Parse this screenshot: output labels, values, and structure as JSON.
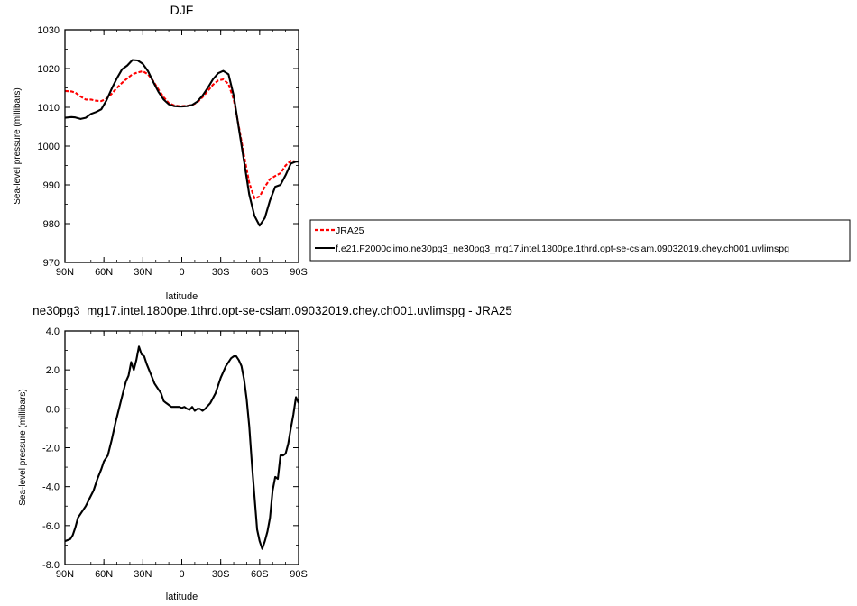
{
  "chart_data": [
    {
      "type": "line",
      "title": "DJF",
      "xlabel": "latitude",
      "ylabel": "Sea-level pressure (millibars)",
      "xlim": [
        -90,
        90
      ],
      "ylim": [
        970,
        1030
      ],
      "xticks": [
        "90N",
        "60N",
        "30N",
        "0",
        "30S",
        "60S",
        "90S"
      ],
      "yticks": [
        "970",
        "980",
        "990",
        "1000",
        "1010",
        "1020",
        "1030"
      ],
      "legend": "right",
      "series": [
        {
          "name": "JRA25",
          "color": "#ff0000",
          "dash": true,
          "x": [
            -90,
            -85,
            -82,
            -78,
            -74,
            -70,
            -66,
            -62,
            -58,
            -54,
            -50,
            -46,
            -42,
            -38,
            -34,
            -30,
            -26,
            -22,
            -18,
            -14,
            -10,
            -6,
            -2,
            0,
            4,
            8,
            12,
            16,
            20,
            24,
            28,
            32,
            36,
            40,
            44,
            48,
            52,
            56,
            60,
            64,
            68,
            72,
            76,
            80,
            84,
            88,
            90
          ],
          "y": [
            1014.2,
            1014.1,
            1013.8,
            1012.8,
            1012.0,
            1012.0,
            1011.7,
            1011.6,
            1012.2,
            1013.5,
            1015.0,
            1016.3,
            1017.5,
            1018.5,
            1019.0,
            1019.3,
            1018.5,
            1016.8,
            1014.6,
            1012.6,
            1011.1,
            1010.5,
            1010.3,
            1010.3,
            1010.4,
            1010.6,
            1011.3,
            1012.6,
            1014.2,
            1015.8,
            1016.9,
            1017.2,
            1016.0,
            1012.0,
            1005.0,
            997.5,
            990.5,
            986.5,
            987.0,
            989.5,
            991.5,
            992.3,
            993.0,
            995.0,
            996.2,
            996.0,
            996.0
          ]
        },
        {
          "name": "f.e21.F2000climo.ne30pg3_ne30pg3_mg17.intel.1800pe.1thrd.opt-se-cslam.09032019.chey.ch001.uvlimspg",
          "color": "#000000",
          "dash": false,
          "x": [
            -90,
            -85,
            -82,
            -78,
            -74,
            -70,
            -66,
            -62,
            -58,
            -54,
            -50,
            -46,
            -42,
            -38,
            -34,
            -30,
            -26,
            -22,
            -18,
            -14,
            -10,
            -6,
            -2,
            0,
            4,
            8,
            12,
            16,
            20,
            24,
            28,
            32,
            36,
            40,
            44,
            48,
            52,
            56,
            60,
            64,
            68,
            72,
            76,
            80,
            84,
            88,
            90
          ],
          "y": [
            1007.3,
            1007.5,
            1007.4,
            1007.0,
            1007.3,
            1008.3,
            1008.8,
            1009.5,
            1011.8,
            1014.8,
            1017.5,
            1019.8,
            1020.8,
            1022.2,
            1022.1,
            1021.2,
            1019.3,
            1016.6,
            1014.0,
            1012.0,
            1010.8,
            1010.3,
            1010.2,
            1010.2,
            1010.3,
            1010.6,
            1011.5,
            1013.0,
            1015.0,
            1017.2,
            1018.8,
            1019.4,
            1018.5,
            1013.0,
            1004.5,
            996.0,
            987.5,
            982.0,
            979.5,
            981.5,
            986.0,
            989.5,
            990.0,
            992.5,
            995.5,
            996.0,
            996.0
          ]
        }
      ]
    },
    {
      "type": "line",
      "title": "ne30pg3_mg17.intel.1800pe.1thrd.opt-se-cslam.09032019.chey.ch001.uvlimspg - JRA25",
      "xlabel": "latitude",
      "ylabel": "Sea-level pressure (millibars)",
      "xlim": [
        -90,
        90
      ],
      "ylim": [
        -8.0,
        4.0
      ],
      "xticks": [
        "90N",
        "60N",
        "30N",
        "0",
        "30S",
        "60S",
        "90S"
      ],
      "yticks": [
        "-8.0",
        "-6.0",
        "-4.0",
        "-2.0",
        "0.0",
        "2.0",
        "4.0"
      ],
      "series": [
        {
          "color": "#000000",
          "x": [
            -90,
            -86,
            -84,
            -82,
            -80,
            -77,
            -74,
            -71,
            -68,
            -65,
            -62,
            -60,
            -57,
            -54,
            -51,
            -48,
            -45,
            -43,
            -41,
            -39,
            -37,
            -35,
            -33,
            -31,
            -29,
            -27,
            -24,
            -21,
            -18,
            -16,
            -14,
            -12,
            -10,
            -8,
            -5,
            -2,
            0,
            2,
            4,
            6,
            8,
            10,
            12,
            14,
            16,
            18,
            22,
            26,
            30,
            34,
            38,
            40,
            42,
            44,
            46,
            48,
            50,
            52,
            54,
            56,
            58,
            60,
            62,
            64,
            66,
            68,
            70,
            72,
            74,
            76,
            78,
            80,
            82,
            84,
            86,
            88,
            90
          ],
          "y": [
            -6.8,
            -6.7,
            -6.5,
            -6.1,
            -5.6,
            -5.3,
            -5.0,
            -4.6,
            -4.2,
            -3.6,
            -3.1,
            -2.7,
            -2.4,
            -1.6,
            -0.7,
            0.1,
            0.9,
            1.4,
            1.7,
            2.4,
            2.0,
            2.5,
            3.2,
            2.8,
            2.7,
            2.3,
            1.8,
            1.3,
            1.0,
            0.8,
            0.4,
            0.3,
            0.2,
            0.1,
            0.1,
            0.1,
            0.05,
            0.1,
            0.0,
            -0.05,
            0.1,
            -0.1,
            0.0,
            0.0,
            -0.1,
            0.0,
            0.3,
            0.8,
            1.6,
            2.2,
            2.6,
            2.7,
            2.7,
            2.5,
            2.2,
            1.5,
            0.5,
            -0.9,
            -2.8,
            -4.5,
            -6.2,
            -6.8,
            -7.2,
            -6.8,
            -6.3,
            -5.6,
            -4.2,
            -3.5,
            -3.6,
            -2.4,
            -2.4,
            -2.3,
            -1.8,
            -1.0,
            -0.3,
            0.6,
            0.3
          ]
        }
      ]
    }
  ]
}
